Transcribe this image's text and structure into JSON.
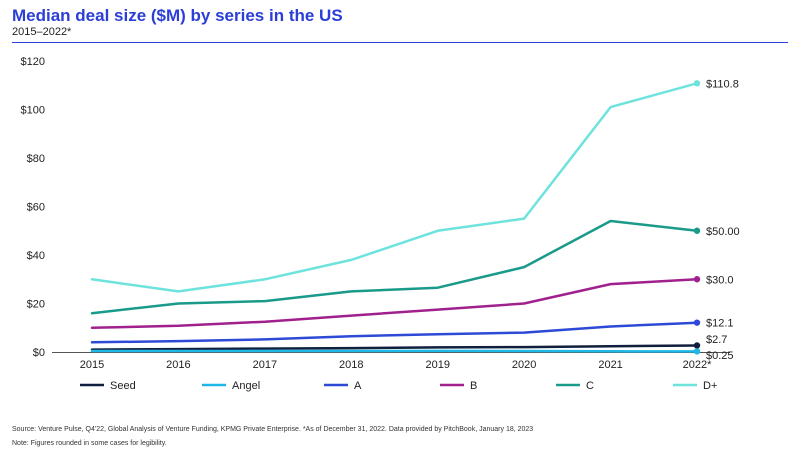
{
  "header": {
    "title": "Median deal size ($M) by series in the US",
    "subtitle": "2015–2022*"
  },
  "footer": {
    "source": "Source: Venture Pulse, Q4'22, Global Analysis of Venture Funding, KPMG Private Enterprise. *As of December 31, 2022. Data provided by PitchBook, January 18, 2023",
    "note": "Note: Figures rounded in some cases for legibility."
  },
  "chart_data": {
    "type": "line",
    "title": "Median deal size ($M) by series in the US",
    "subtitle": "2015–2022*",
    "x": [
      "2015",
      "2016",
      "2017",
      "2018",
      "2019",
      "2020",
      "2021",
      "2022*"
    ],
    "ylim": [
      0,
      120
    ],
    "yticks": [
      0,
      20,
      40,
      60,
      80,
      100,
      120
    ],
    "ytick_labels": [
      "$0",
      "$20",
      "$40",
      "$60",
      "$80",
      "$100",
      "$120"
    ],
    "grid": false,
    "legend_position": "bottom",
    "series": [
      {
        "name": "Seed",
        "color": "#0f1f3d",
        "values": [
          1.0,
          1.2,
          1.4,
          1.6,
          1.9,
          2.0,
          2.4,
          2.7
        ],
        "end_label": "$2.7"
      },
      {
        "name": "Angel",
        "color": "#1eb8e6",
        "values": [
          0.4,
          0.4,
          0.4,
          0.4,
          0.45,
          0.4,
          0.3,
          0.25
        ],
        "end_label": "$0.25"
      },
      {
        "name": "A",
        "color": "#2d4ad6",
        "values": [
          4.0,
          4.5,
          5.2,
          6.5,
          7.3,
          8.0,
          10.5,
          12.1
        ],
        "end_label": "$12.1"
      },
      {
        "name": "B",
        "color": "#a0208e",
        "values": [
          10.0,
          10.8,
          12.5,
          15.0,
          17.5,
          20.0,
          28.0,
          30.0
        ],
        "end_label": "$30.0"
      },
      {
        "name": "C",
        "color": "#1a9a8a",
        "values": [
          16.0,
          20.0,
          21.0,
          25.0,
          26.5,
          35.0,
          54.0,
          50.0
        ],
        "end_label": "$50.00"
      },
      {
        "name": "D+",
        "color": "#6ee3de",
        "values": [
          30.0,
          25.0,
          30.0,
          38.0,
          50.0,
          55.0,
          101.0,
          110.8
        ],
        "end_label": "$110.8"
      }
    ]
  }
}
